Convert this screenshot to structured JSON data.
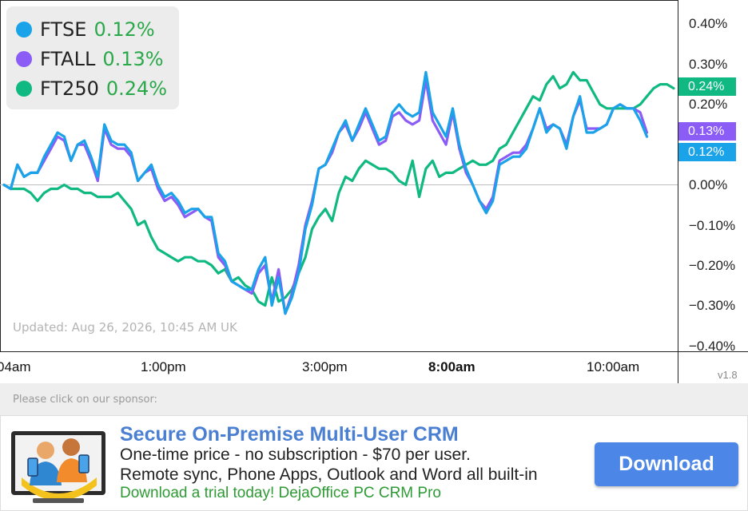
{
  "legend": [
    {
      "name": "FTSE",
      "pct": "0.12%",
      "color": "#1aa3e8"
    },
    {
      "name": "FTALL",
      "pct": "0.13%",
      "color": "#8b5cf6"
    },
    {
      "name": "FT250",
      "pct": "0.24%",
      "color": "#10b981"
    }
  ],
  "updated_text": "Updated: Aug 26, 2026, 10:45 AM UK",
  "version": "v1.8",
  "end_badges": [
    {
      "label": "0.24%",
      "value": 0.24,
      "color": "#10b981"
    },
    {
      "label": "0.13%",
      "value": 0.13,
      "color": "#8b5cf6"
    },
    {
      "label": "0.12%",
      "value": 0.12,
      "color": "#1aa3e8"
    }
  ],
  "chart_data": {
    "type": "line",
    "ylim": [
      -0.4,
      0.4
    ],
    "y_ticks": [
      "0.40%",
      "0.30%",
      "0.20%",
      "0.00%",
      "−0.10%",
      "−0.20%",
      "−0.30%",
      "−0.40%"
    ],
    "y_tick_values": [
      0.4,
      0.3,
      0.2,
      0.0,
      -0.1,
      -0.2,
      -0.3,
      -0.4
    ],
    "x_ticks": [
      {
        "label": "04am",
        "bold": false,
        "index": 0
      },
      {
        "label": "1:00pm",
        "bold": false,
        "index": 20
      },
      {
        "label": "3:00pm",
        "bold": false,
        "index": 40
      },
      {
        "label": "8:00am",
        "bold": true,
        "index": 56
      },
      {
        "label": "10:00am",
        "bold": false,
        "index": 76
      }
    ],
    "series": [
      {
        "name": "FT250",
        "color": "#10b981",
        "values": [
          0.0,
          -0.01,
          -0.01,
          -0.01,
          -0.02,
          -0.04,
          -0.02,
          -0.01,
          -0.01,
          -0.0,
          -0.01,
          -0.01,
          -0.02,
          -0.02,
          -0.03,
          -0.03,
          -0.03,
          -0.02,
          -0.04,
          -0.06,
          -0.1,
          -0.09,
          -0.13,
          -0.16,
          -0.17,
          -0.18,
          -0.19,
          -0.18,
          -0.18,
          -0.19,
          -0.19,
          -0.2,
          -0.22,
          -0.21,
          -0.24,
          -0.23,
          -0.25,
          -0.26,
          -0.29,
          -0.3,
          -0.23,
          -0.29,
          -0.28,
          -0.26,
          -0.22,
          -0.18,
          -0.11,
          -0.08,
          -0.06,
          -0.09,
          -0.02,
          0.02,
          0.01,
          0.04,
          0.06,
          0.05,
          0.04,
          0.04,
          0.03,
          0.01,
          0.0,
          0.06,
          -0.03,
          0.04,
          0.06,
          0.02,
          0.03,
          0.03,
          0.04,
          0.05,
          0.06,
          0.05,
          0.05,
          0.06,
          0.09,
          0.1,
          0.13,
          0.16,
          0.19,
          0.22,
          0.21,
          0.25,
          0.27,
          0.24,
          0.25,
          0.28,
          0.26,
          0.26,
          0.23,
          0.2,
          0.19,
          0.19,
          0.19,
          0.19,
          0.19,
          0.2,
          0.22,
          0.24,
          0.25,
          0.25,
          0.24
        ]
      },
      {
        "name": "FTALL",
        "color": "#8b5cf6",
        "values": [
          0.0,
          -0.01,
          0.05,
          0.02,
          0.03,
          0.03,
          0.06,
          0.09,
          0.12,
          0.11,
          0.06,
          0.1,
          0.1,
          0.06,
          0.01,
          0.14,
          0.1,
          0.09,
          0.09,
          0.07,
          0.01,
          0.03,
          0.04,
          -0.01,
          -0.04,
          -0.03,
          -0.05,
          -0.08,
          -0.07,
          -0.06,
          -0.08,
          -0.09,
          -0.18,
          -0.2,
          -0.24,
          -0.25,
          -0.26,
          -0.27,
          -0.22,
          -0.2,
          -0.29,
          -0.21,
          -0.32,
          -0.27,
          -0.2,
          -0.1,
          -0.04,
          0.04,
          0.05,
          0.08,
          0.13,
          0.15,
          0.11,
          0.14,
          0.18,
          0.14,
          0.1,
          0.11,
          0.17,
          0.18,
          0.16,
          0.15,
          0.16,
          0.26,
          0.16,
          0.13,
          0.1,
          0.18,
          0.09,
          0.03,
          0.0,
          -0.04,
          -0.06,
          -0.03,
          0.06,
          0.07,
          0.08,
          0.08,
          0.1,
          0.14,
          0.19,
          0.14,
          0.15,
          0.14,
          0.1,
          0.17,
          0.21,
          0.14,
          0.14,
          0.14,
          0.15,
          0.19,
          0.2,
          0.19,
          0.19,
          0.18,
          0.13
        ]
      },
      {
        "name": "FTSE",
        "color": "#1aa3e8",
        "values": [
          0.0,
          -0.01,
          0.05,
          0.02,
          0.03,
          0.03,
          0.07,
          0.1,
          0.13,
          0.12,
          0.06,
          0.1,
          0.11,
          0.07,
          0.02,
          0.15,
          0.11,
          0.1,
          0.1,
          0.08,
          0.01,
          0.03,
          0.05,
          -0.0,
          -0.03,
          -0.02,
          -0.04,
          -0.07,
          -0.06,
          -0.06,
          -0.08,
          -0.08,
          -0.17,
          -0.19,
          -0.24,
          -0.25,
          -0.26,
          -0.26,
          -0.21,
          -0.18,
          -0.3,
          -0.23,
          -0.32,
          -0.28,
          -0.22,
          -0.11,
          -0.05,
          0.04,
          0.05,
          0.09,
          0.13,
          0.16,
          0.11,
          0.15,
          0.19,
          0.15,
          0.11,
          0.12,
          0.18,
          0.2,
          0.18,
          0.17,
          0.18,
          0.28,
          0.18,
          0.15,
          0.12,
          0.19,
          0.1,
          0.04,
          0.0,
          -0.04,
          -0.07,
          -0.04,
          0.05,
          0.06,
          0.07,
          0.07,
          0.09,
          0.14,
          0.19,
          0.13,
          0.15,
          0.14,
          0.09,
          0.17,
          0.22,
          0.13,
          0.13,
          0.14,
          0.15,
          0.19,
          0.2,
          0.19,
          0.19,
          0.16,
          0.12
        ]
      }
    ]
  },
  "sponsor": {
    "caption": "Please click on our sponsor:",
    "title": "Secure On-Premise Multi-User CRM",
    "line1": "One-time price - no subscription - $70 per user.",
    "line2": "Remote sync, Phone Apps, Outlook and Word all built-in",
    "line3": "Download a trial today! DejaOffice PC CRM Pro",
    "button_label": "Download"
  }
}
